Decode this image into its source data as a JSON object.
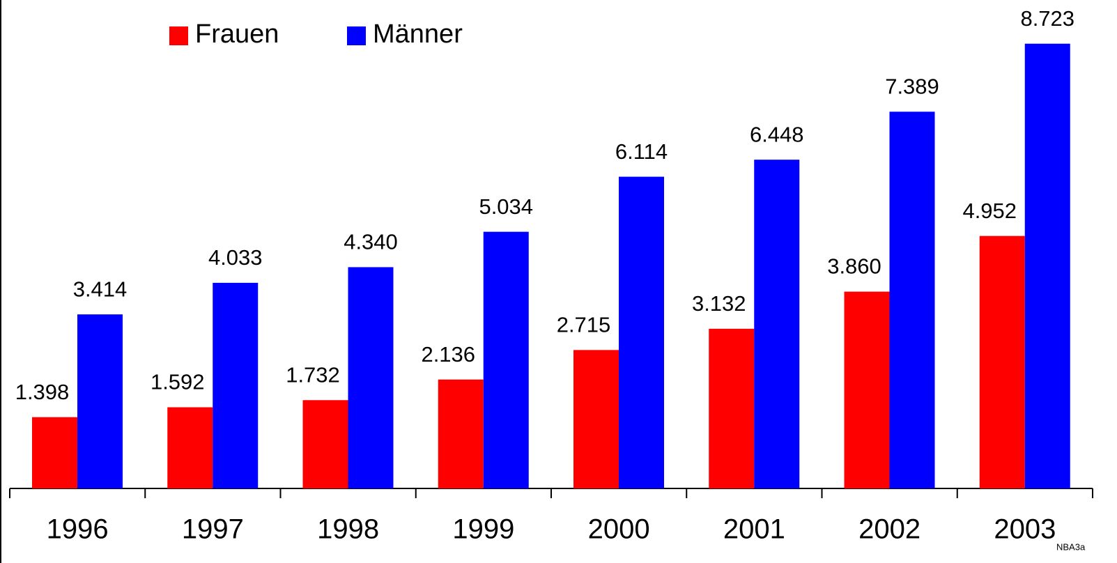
{
  "chart_data": {
    "type": "bar",
    "note": "NBA3a",
    "categories": [
      "1996",
      "1997",
      "1998",
      "1999",
      "2000",
      "2001",
      "2002",
      "2003"
    ],
    "series": [
      {
        "name": "Frauen",
        "color": "#ff0000",
        "values": [
          1.398,
          1.592,
          1.732,
          2.136,
          2.715,
          3.132,
          3.86,
          4.952
        ],
        "value_labels": [
          "1.398",
          "1.592",
          "1.732",
          "2.136",
          "2.715",
          "3.132",
          "3.860",
          "4.952"
        ]
      },
      {
        "name": "Männer",
        "color": "#0000ff",
        "values": [
          3.414,
          4.033,
          4.34,
          5.034,
          6.114,
          6.448,
          7.389,
          8.723
        ],
        "value_labels": [
          "3.414",
          "4.033",
          "4.340",
          "5.034",
          "6.114",
          "6.448",
          "7.389",
          "8.723"
        ]
      }
    ],
    "ylim": [
      0,
      9.58
    ],
    "legend": "top-left"
  }
}
